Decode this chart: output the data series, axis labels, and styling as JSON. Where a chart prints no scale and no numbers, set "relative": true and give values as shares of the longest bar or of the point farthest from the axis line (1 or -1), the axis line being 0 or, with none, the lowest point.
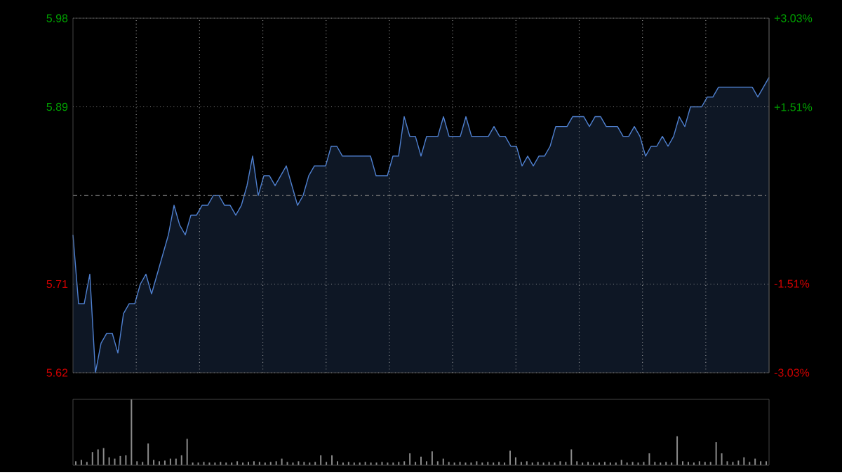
{
  "chart_data": [
    {
      "type": "area",
      "color": "#4f80d0",
      "grid": true,
      "categories": [
        null,
        null,
        null,
        null,
        null,
        null,
        null,
        null,
        null,
        null,
        null,
        null,
        null,
        null,
        null,
        null,
        null,
        null,
        null,
        null,
        null,
        null,
        null,
        null,
        null,
        null,
        null,
        null,
        null,
        null,
        null,
        null,
        null,
        null,
        null,
        null,
        null,
        null,
        null,
        null,
        null,
        null,
        null,
        null,
        null,
        null,
        null,
        null,
        null,
        null,
        null,
        null,
        null,
        null,
        null,
        null,
        null,
        null,
        null,
        null,
        null,
        null,
        null,
        null,
        null,
        null,
        null,
        null,
        null,
        null,
        null,
        null,
        null,
        null,
        null,
        null,
        null,
        null,
        null,
        null,
        null,
        null,
        null,
        null,
        null,
        null,
        null,
        null,
        null,
        null,
        null,
        null,
        null,
        null,
        null,
        null,
        null,
        null,
        null,
        null,
        null,
        null,
        null,
        null,
        null,
        null,
        null,
        null,
        null,
        null,
        null,
        null,
        null,
        null,
        null,
        null,
        null,
        null,
        null,
        null,
        null,
        null,
        null,
        null,
        null
      ],
      "values": [
        5.76,
        5.69,
        5.69,
        5.72,
        5.62,
        5.65,
        5.66,
        5.66,
        5.64,
        5.68,
        5.69,
        5.69,
        5.71,
        5.72,
        5.7,
        5.72,
        5.74,
        5.76,
        5.79,
        5.77,
        5.76,
        5.78,
        5.78,
        5.79,
        5.79,
        5.8,
        5.8,
        5.79,
        5.79,
        5.78,
        5.79,
        5.81,
        5.84,
        5.8,
        5.82,
        5.82,
        5.81,
        5.82,
        5.83,
        5.81,
        5.79,
        5.8,
        5.82,
        5.83,
        5.83,
        5.83,
        5.85,
        5.85,
        5.84,
        5.84,
        5.84,
        5.84,
        5.84,
        5.84,
        5.82,
        5.82,
        5.82,
        5.84,
        5.84,
        5.88,
        5.86,
        5.86,
        5.84,
        5.86,
        5.86,
        5.86,
        5.88,
        5.86,
        5.86,
        5.86,
        5.88,
        5.86,
        5.86,
        5.86,
        5.86,
        5.87,
        5.86,
        5.86,
        5.85,
        5.85,
        5.83,
        5.84,
        5.83,
        5.84,
        5.84,
        5.85,
        5.87,
        5.87,
        5.87,
        5.88,
        5.88,
        5.88,
        5.87,
        5.88,
        5.88,
        5.87,
        5.87,
        5.87,
        5.86,
        5.86,
        5.87,
        5.86,
        5.84,
        5.85,
        5.85,
        5.86,
        5.85,
        5.86,
        5.88,
        5.87,
        5.89,
        5.89,
        5.89,
        5.9,
        5.9,
        5.91,
        5.91,
        5.91,
        5.91,
        5.91,
        5.91,
        5.91,
        5.9,
        5.91,
        5.92
      ],
      "ylim": [
        5.62,
        5.98
      ],
      "yticks": [
        5.62,
        5.71,
        5.89,
        5.98
      ],
      "y2lim": [
        -3.03,
        3.03
      ],
      "y2ticks": [
        {
          "value": -3.03,
          "label": "-3.03%"
        },
        {
          "value": -1.51,
          "label": "-1.51%"
        },
        {
          "value": 1.51,
          "label": "+1.51%"
        },
        {
          "value": 3.03,
          "label": "+3.03%"
        }
      ],
      "ref_lines": [
        {
          "axis": "y",
          "value": 5.8,
          "color": "#777777",
          "line_style": "dashed"
        }
      ]
    },
    {
      "type": "bar",
      "relative": true,
      "color": "#8a8a8a",
      "categories": [
        null,
        null,
        null,
        null,
        null,
        null,
        null,
        null,
        null,
        null,
        null,
        null,
        null,
        null,
        null,
        null,
        null,
        null,
        null,
        null,
        null,
        null,
        null,
        null,
        null,
        null,
        null,
        null,
        null,
        null,
        null,
        null,
        null,
        null,
        null,
        null,
        null,
        null,
        null,
        null,
        null,
        null,
        null,
        null,
        null,
        null,
        null,
        null,
        null,
        null,
        null,
        null,
        null,
        null,
        null,
        null,
        null,
        null,
        null,
        null,
        null,
        null,
        null,
        null,
        null,
        null,
        null,
        null,
        null,
        null,
        null,
        null,
        null,
        null,
        null,
        null,
        null,
        null,
        null,
        null,
        null,
        null,
        null,
        null,
        null,
        null,
        null,
        null,
        null,
        null,
        null,
        null,
        null,
        null,
        null,
        null,
        null,
        null,
        null,
        null,
        null,
        null,
        null,
        null,
        null,
        null,
        null,
        null,
        null,
        null,
        null,
        null,
        null,
        null,
        null,
        null,
        null,
        null,
        null,
        null,
        null,
        null,
        null,
        null,
        null
      ],
      "values": [
        0.06,
        0.08,
        0.05,
        0.2,
        0.24,
        0.26,
        0.12,
        0.1,
        0.14,
        0.15,
        1.0,
        0.06,
        0.05,
        0.33,
        0.08,
        0.06,
        0.07,
        0.1,
        0.1,
        0.15,
        0.4,
        0.04,
        0.04,
        0.05,
        0.04,
        0.04,
        0.05,
        0.04,
        0.04,
        0.06,
        0.04,
        0.05,
        0.06,
        0.05,
        0.04,
        0.05,
        0.06,
        0.1,
        0.05,
        0.04,
        0.06,
        0.05,
        0.04,
        0.05,
        0.15,
        0.05,
        0.15,
        0.06,
        0.04,
        0.05,
        0.04,
        0.04,
        0.05,
        0.04,
        0.04,
        0.05,
        0.04,
        0.04,
        0.05,
        0.06,
        0.18,
        0.05,
        0.13,
        0.06,
        0.21,
        0.06,
        0.1,
        0.05,
        0.04,
        0.05,
        0.04,
        0.04,
        0.06,
        0.04,
        0.05,
        0.04,
        0.05,
        0.04,
        0.22,
        0.12,
        0.05,
        0.06,
        0.04,
        0.05,
        0.04,
        0.05,
        0.04,
        0.06,
        0.05,
        0.24,
        0.06,
        0.04,
        0.05,
        0.04,
        0.04,
        0.05,
        0.04,
        0.04,
        0.08,
        0.04,
        0.05,
        0.04,
        0.05,
        0.18,
        0.05,
        0.04,
        0.05,
        0.04,
        0.44,
        0.06,
        0.05,
        0.04,
        0.06,
        0.05,
        0.05,
        0.35,
        0.18,
        0.06,
        0.05,
        0.07,
        0.12,
        0.05,
        0.1,
        0.06,
        0.06
      ]
    }
  ]
}
